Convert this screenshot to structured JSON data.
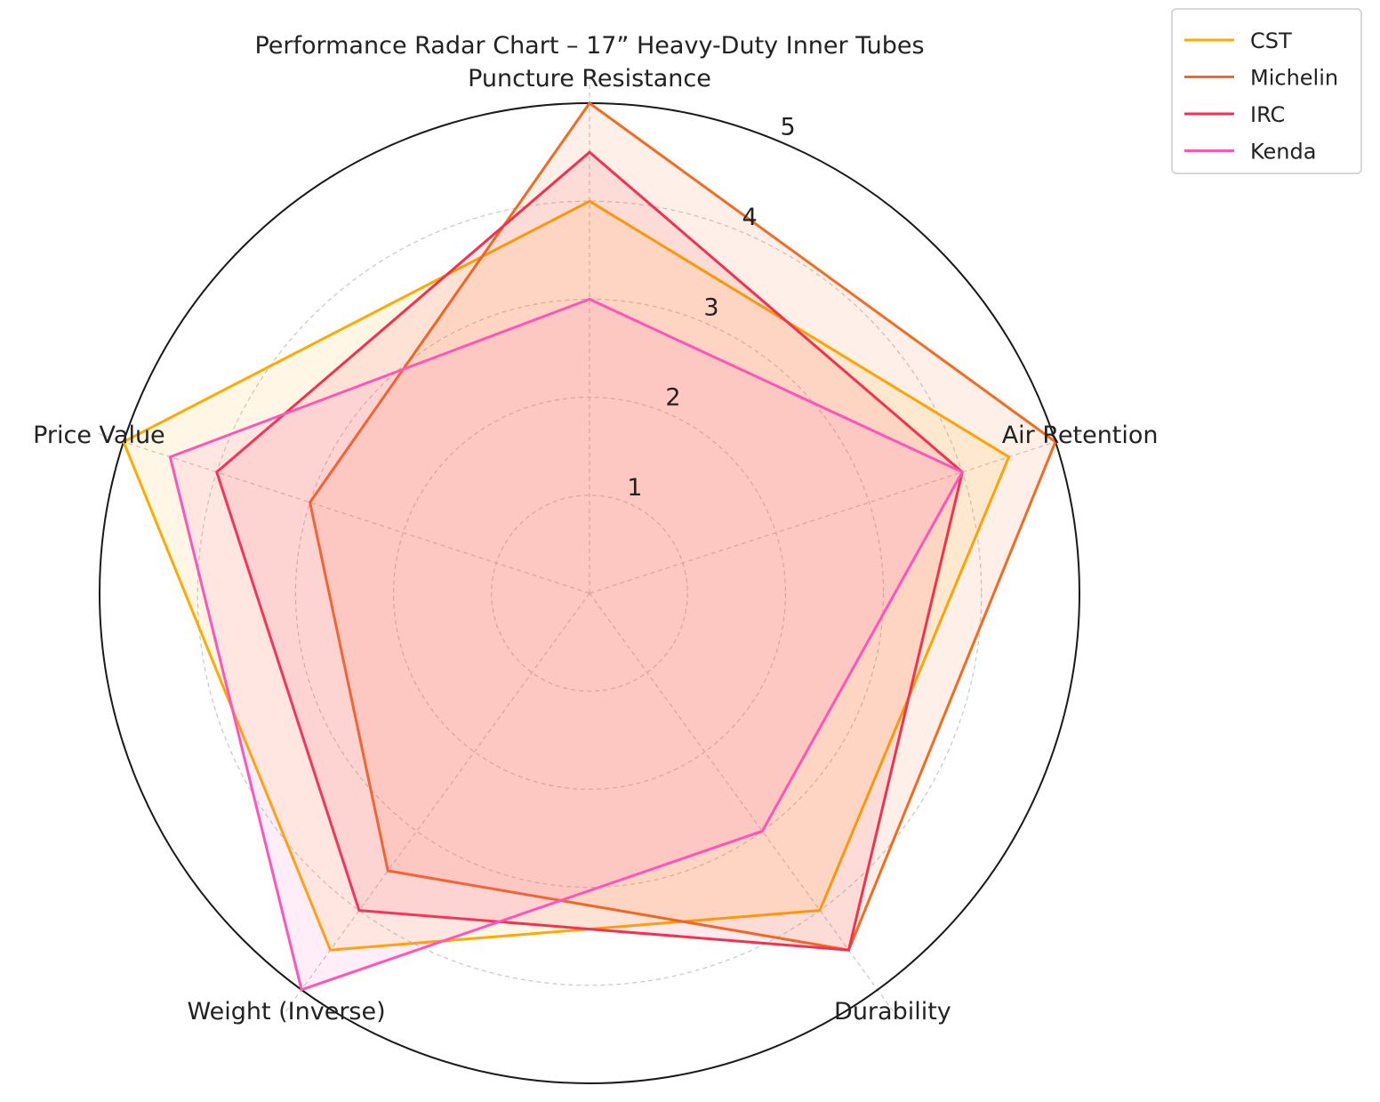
{
  "chart_data": {
    "type": "radar",
    "title": "Performance Radar Chart – 17” Heavy-Duty Inner Tubes",
    "categories": [
      "Puncture Resistance",
      "Air Retention",
      "Durability",
      "Weight (Inverse)",
      "Price Value"
    ],
    "rlim": [
      0,
      5
    ],
    "rticks": [
      "1",
      "2",
      "3",
      "4",
      "5"
    ],
    "grid": true,
    "legend_position": "top-right",
    "series": [
      {
        "name": "CST",
        "color": "#FFAA00",
        "values": [
          4.0,
          4.5,
          4.0,
          4.5,
          5.0
        ]
      },
      {
        "name": "Michelin",
        "color": "#F26B21",
        "values": [
          5.0,
          5.0,
          4.5,
          3.5,
          3.0
        ]
      },
      {
        "name": "IRC",
        "color": "#F5304F",
        "values": [
          4.5,
          4.0,
          4.5,
          4.0,
          4.0
        ]
      },
      {
        "name": "Kenda",
        "color": "#FF55BB",
        "values": [
          3.0,
          4.0,
          3.0,
          5.0,
          4.5
        ]
      }
    ]
  }
}
